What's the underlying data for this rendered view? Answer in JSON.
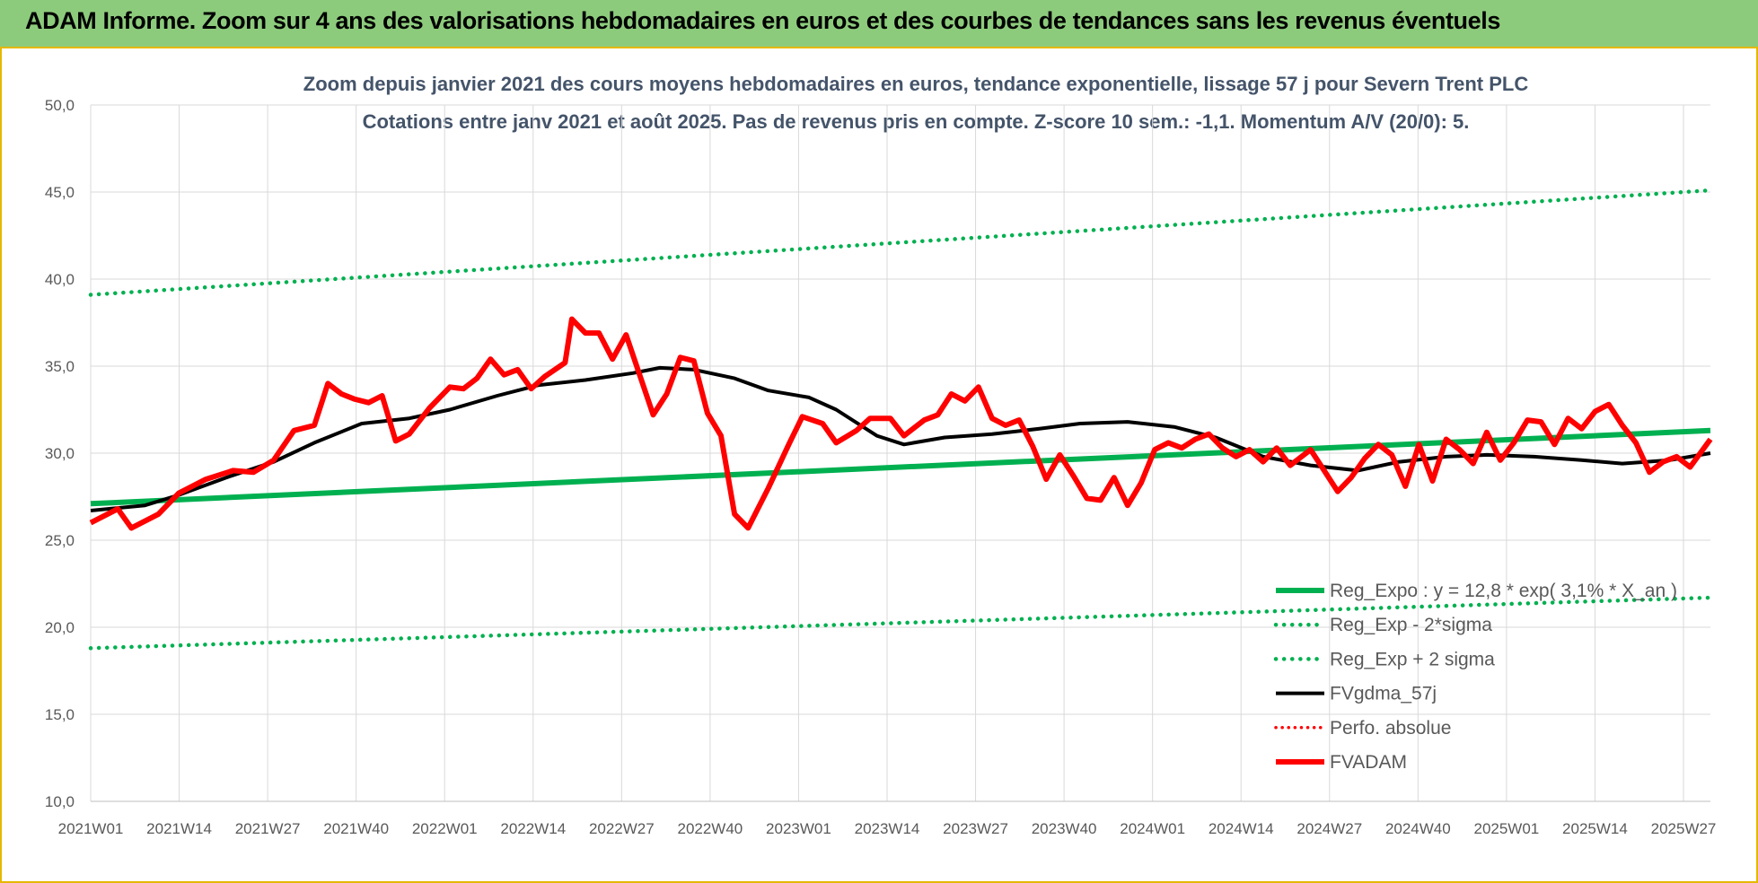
{
  "banner": {
    "title": "ADAM Informe. Zoom sur 4 ans des valorisations hebdomadaires en euros et des courbes de tendances sans les revenus éventuels"
  },
  "colors": {
    "banner": "#8dcb7c",
    "regression": "#00b050",
    "moving_average": "#000000",
    "price": "#ff0000"
  },
  "chart_data": {
    "type": "line",
    "title": "Zoom depuis janvier 2021 des cours moyens hebdomadaires en euros, tendance exponentielle, lissage 57 j pour Severn Trent PLC",
    "subtitle": "Cotations entre janv 2021 et août 2025.  Pas de revenus pris en compte. Z-score 10 sem.: -1,1. Momentum A/V (20/0): 5.",
    "x_ticks": [
      "2021W01",
      "2021W14",
      "2021W27",
      "2021W40",
      "2022W01",
      "2022W14",
      "2022W27",
      "2022W40",
      "2023W01",
      "2023W14",
      "2023W27",
      "2023W40",
      "2024W01",
      "2024W14",
      "2024W27",
      "2024W40",
      "2025W01",
      "2025W14",
      "2025W27"
    ],
    "y_ticks": [
      "50,0",
      "45,0",
      "40,0",
      "35,0",
      "30,0",
      "25,0",
      "20,0",
      "15,0",
      "10,0"
    ],
    "ylim": [
      10,
      50
    ],
    "x_range_weeks": [
      0,
      239
    ],
    "grid": "vertical and horizontal",
    "legend_position": "bottom-right",
    "series": [
      {
        "name": "Reg_Expo : y = 12,8 * exp( 3,1% * X_an )",
        "color": "#00b050",
        "style": "solid-thick",
        "points": [
          [
            0,
            27.1
          ],
          [
            239,
            31.3
          ]
        ]
      },
      {
        "name": "Reg_Exp - 2*sigma",
        "color": "#00b050",
        "style": "dotted",
        "points": [
          [
            0,
            18.8
          ],
          [
            239,
            21.7
          ]
        ]
      },
      {
        "name": "Reg_Exp + 2 sigma",
        "color": "#00b050",
        "style": "dotted",
        "points": [
          [
            0,
            39.1
          ],
          [
            239,
            45.1
          ]
        ]
      },
      {
        "name": "FVgdma_57j",
        "color": "#000000",
        "style": "solid",
        "points": [
          [
            0,
            26.7
          ],
          [
            8,
            27.0
          ],
          [
            13,
            27.6
          ],
          [
            20,
            28.6
          ],
          [
            27,
            29.5
          ],
          [
            33,
            30.6
          ],
          [
            40,
            31.7
          ],
          [
            47,
            32.0
          ],
          [
            53,
            32.5
          ],
          [
            60,
            33.3
          ],
          [
            66,
            33.9
          ],
          [
            73,
            34.2
          ],
          [
            80,
            34.6
          ],
          [
            84,
            34.9
          ],
          [
            89,
            34.8
          ],
          [
            95,
            34.3
          ],
          [
            100,
            33.6
          ],
          [
            106,
            33.2
          ],
          [
            110,
            32.5
          ],
          [
            116,
            31.0
          ],
          [
            120,
            30.5
          ],
          [
            126,
            30.9
          ],
          [
            133,
            31.1
          ],
          [
            140,
            31.4
          ],
          [
            146,
            31.7
          ],
          [
            153,
            31.8
          ],
          [
            160,
            31.5
          ],
          [
            166,
            30.9
          ],
          [
            173,
            29.8
          ],
          [
            180,
            29.3
          ],
          [
            187,
            29.0
          ],
          [
            193,
            29.5
          ],
          [
            200,
            29.8
          ],
          [
            206,
            29.9
          ],
          [
            213,
            29.8
          ],
          [
            220,
            29.6
          ],
          [
            226,
            29.4
          ],
          [
            233,
            29.6
          ],
          [
            239,
            30.0
          ]
        ]
      },
      {
        "name": "FVADAM",
        "color": "#ff0000",
        "style": "solid-thick",
        "points": [
          [
            0,
            26.0
          ],
          [
            4,
            26.8
          ],
          [
            6,
            25.7
          ],
          [
            10,
            26.5
          ],
          [
            13,
            27.7
          ],
          [
            17,
            28.5
          ],
          [
            21,
            29.0
          ],
          [
            24,
            28.9
          ],
          [
            27,
            29.6
          ],
          [
            30,
            31.3
          ],
          [
            33,
            31.6
          ],
          [
            35,
            34.0
          ],
          [
            37,
            33.4
          ],
          [
            39,
            33.1
          ],
          [
            41,
            32.9
          ],
          [
            43,
            33.3
          ],
          [
            45,
            30.7
          ],
          [
            47,
            31.1
          ],
          [
            50,
            32.6
          ],
          [
            53,
            33.8
          ],
          [
            55,
            33.7
          ],
          [
            57,
            34.3
          ],
          [
            59,
            35.4
          ],
          [
            61,
            34.5
          ],
          [
            63,
            34.8
          ],
          [
            65,
            33.7
          ],
          [
            67,
            34.4
          ],
          [
            70,
            35.2
          ],
          [
            71,
            37.7
          ],
          [
            73,
            36.9
          ],
          [
            75,
            36.9
          ],
          [
            77,
            35.4
          ],
          [
            79,
            36.8
          ],
          [
            81,
            34.5
          ],
          [
            83,
            32.2
          ],
          [
            85,
            33.4
          ],
          [
            87,
            35.5
          ],
          [
            89,
            35.3
          ],
          [
            91,
            32.3
          ],
          [
            93,
            31.0
          ],
          [
            95,
            26.5
          ],
          [
            97,
            25.7
          ],
          [
            100,
            28.0
          ],
          [
            103,
            30.5
          ],
          [
            105,
            32.1
          ],
          [
            108,
            31.7
          ],
          [
            110,
            30.6
          ],
          [
            113,
            31.3
          ],
          [
            115,
            32.0
          ],
          [
            118,
            32.0
          ],
          [
            120,
            31.0
          ],
          [
            123,
            31.9
          ],
          [
            125,
            32.2
          ],
          [
            127,
            33.4
          ],
          [
            129,
            33.0
          ],
          [
            131,
            33.8
          ],
          [
            133,
            32.0
          ],
          [
            135,
            31.6
          ],
          [
            137,
            31.9
          ],
          [
            139,
            30.4
          ],
          [
            141,
            28.5
          ],
          [
            143,
            29.9
          ],
          [
            145,
            28.7
          ],
          [
            147,
            27.4
          ],
          [
            149,
            27.3
          ],
          [
            151,
            28.6
          ],
          [
            153,
            27.0
          ],
          [
            155,
            28.3
          ],
          [
            157,
            30.2
          ],
          [
            159,
            30.6
          ],
          [
            161,
            30.3
          ],
          [
            163,
            30.8
          ],
          [
            165,
            31.1
          ],
          [
            167,
            30.3
          ],
          [
            169,
            29.8
          ],
          [
            171,
            30.2
          ],
          [
            173,
            29.5
          ],
          [
            175,
            30.3
          ],
          [
            177,
            29.3
          ],
          [
            180,
            30.2
          ],
          [
            182,
            29.0
          ],
          [
            184,
            27.8
          ],
          [
            186,
            28.6
          ],
          [
            188,
            29.7
          ],
          [
            190,
            30.5
          ],
          [
            192,
            29.9
          ],
          [
            194,
            28.1
          ],
          [
            196,
            30.5
          ],
          [
            198,
            28.4
          ],
          [
            200,
            30.8
          ],
          [
            202,
            30.2
          ],
          [
            204,
            29.4
          ],
          [
            206,
            31.2
          ],
          [
            208,
            29.6
          ],
          [
            210,
            30.6
          ],
          [
            212,
            31.9
          ],
          [
            214,
            31.8
          ],
          [
            216,
            30.5
          ],
          [
            218,
            32.0
          ],
          [
            220,
            31.4
          ],
          [
            222,
            32.4
          ],
          [
            224,
            32.8
          ],
          [
            226,
            31.6
          ],
          [
            228,
            30.6
          ],
          [
            230,
            28.9
          ],
          [
            232,
            29.5
          ],
          [
            234,
            29.8
          ],
          [
            236,
            29.2
          ],
          [
            239,
            30.8
          ]
        ]
      }
    ]
  }
}
